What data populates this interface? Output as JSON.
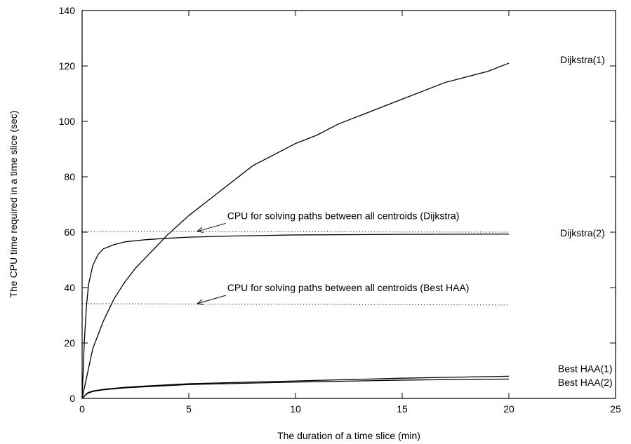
{
  "chart_data": {
    "type": "line",
    "title": "",
    "xlabel": "The duration of a time slice (min)",
    "ylabel": "The CPU time required in a time slice (sec)",
    "xlim": [
      0,
      25
    ],
    "ylim": [
      0,
      140
    ],
    "xticks": [
      0,
      5,
      10,
      15,
      20,
      25
    ],
    "yticks": [
      0,
      20,
      40,
      60,
      80,
      100,
      120,
      140
    ],
    "grid": false,
    "series": [
      {
        "name": "Dijkstra(1)",
        "style": "solid",
        "x": [
          0,
          0.5,
          1,
          1.5,
          2,
          2.5,
          3,
          3.5,
          4,
          5,
          6,
          7,
          8,
          9,
          10,
          11,
          12,
          13,
          14,
          15,
          16,
          17,
          18,
          19,
          20
        ],
        "y": [
          0,
          18,
          28,
          36,
          42,
          47,
          51,
          55,
          59,
          66,
          72,
          78,
          84,
          88,
          92,
          95,
          99,
          102,
          105,
          108,
          111,
          114,
          116,
          118,
          121
        ]
      },
      {
        "name": "Dijkstra(2)",
        "style": "solid",
        "x": [
          0,
          0.1,
          0.2,
          0.3,
          0.5,
          0.75,
          1,
          1.5,
          2,
          3,
          4,
          5,
          7,
          10,
          15,
          20
        ],
        "y": [
          0,
          20,
          33,
          41,
          48,
          52,
          54,
          55.5,
          56.5,
          57.3,
          57.8,
          58.2,
          58.6,
          59,
          59.2,
          59.3
        ]
      },
      {
        "name": "Best HAA(1)",
        "style": "solid",
        "x": [
          0,
          0.25,
          0.5,
          1,
          2,
          3,
          5,
          10,
          15,
          20
        ],
        "y": [
          0,
          2,
          2.7,
          3.3,
          4,
          4.5,
          5.3,
          6.3,
          7.3,
          8
        ]
      },
      {
        "name": "Best HAA(2)",
        "style": "solid",
        "x": [
          0,
          0.25,
          0.5,
          1,
          2,
          3,
          5,
          10,
          15,
          20
        ],
        "y": [
          0,
          1.8,
          2.5,
          3.1,
          3.8,
          4.2,
          5,
          5.9,
          6.6,
          7
        ]
      }
    ],
    "reference_lines": [
      {
        "name": "CPU for solving paths between all centroids (Dijkstra)",
        "style": "dotted",
        "x": [
          0,
          20
        ],
        "y": [
          60.3,
          60
        ]
      },
      {
        "name": "CPU for solving paths between all centroids (Best HAA)",
        "style": "dotted",
        "x": [
          0,
          20
        ],
        "y": [
          34.2,
          33.7
        ]
      }
    ],
    "annotations": [
      {
        "text": "CPU for solving paths between all centroids (Dijkstra)",
        "arrow_to": [
          5.4,
          60.3
        ],
        "text_at": [
          6.8,
          64.7
        ]
      },
      {
        "text": "CPU for solving paths between all centroids (Best HAA)",
        "arrow_to": [
          5.4,
          34.2
        ],
        "text_at": [
          6.8,
          38.7
        ]
      }
    ],
    "series_labels": [
      {
        "text": "Dijkstra(1)",
        "x": 22.4,
        "y": 121
      },
      {
        "text": "Dijkstra(2)",
        "x": 22.4,
        "y": 58.5
      },
      {
        "text": "Best HAA(1)",
        "x": 22.3,
        "y": 9.5
      },
      {
        "text": "Best HAA(2)",
        "x": 22.3,
        "y": 4.5
      }
    ]
  }
}
